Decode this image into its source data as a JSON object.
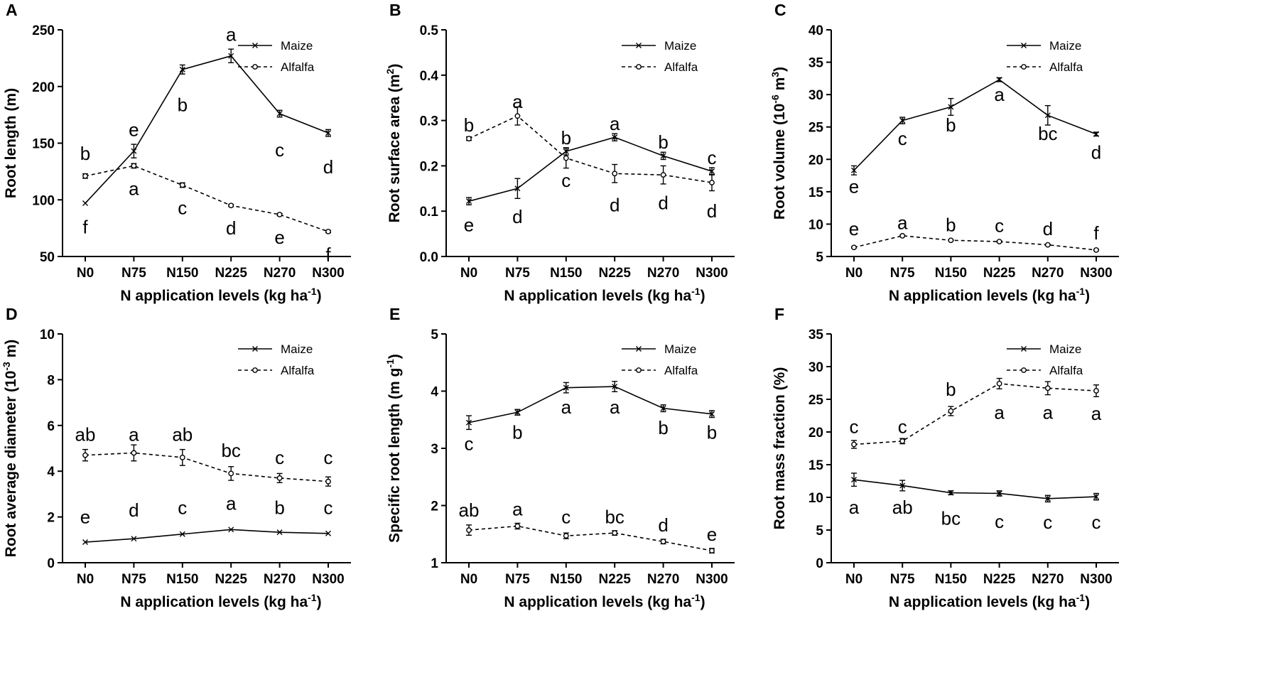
{
  "chart_data": [
    {
      "panel": "A",
      "type": "line",
      "xlabel": "N application levels (kg ha",
      "xlabel_sup": "-1",
      "xlabel_end": ")",
      "ylabel": "Root length (m)",
      "ylim": [
        50,
        250
      ],
      "yticks": [
        50,
        100,
        150,
        200,
        250
      ],
      "categories": [
        "N0",
        "N75",
        "N150",
        "N225",
        "N270",
        "N300"
      ],
      "series": [
        {
          "name": "Maize",
          "style": "solid",
          "marker": "x",
          "values": [
            97,
            143,
            215,
            227,
            176,
            159
          ],
          "errors": [
            0,
            6,
            4,
            6,
            3,
            3
          ],
          "labels": [
            "f",
            "e",
            "b",
            "a",
            "c",
            "d"
          ],
          "label_values": [
            76,
            162,
            184,
            246,
            144,
            129
          ]
        },
        {
          "name": "Alfalfa",
          "style": "dashed",
          "marker": "o",
          "values": [
            121,
            130,
            113,
            95,
            87,
            72
          ],
          "errors": [
            2,
            2,
            2,
            1,
            1,
            1
          ],
          "labels": [
            "b",
            "a",
            "c",
            "d",
            "e",
            "f"
          ],
          "label_values": [
            141,
            110,
            93,
            75,
            67,
            52
          ]
        }
      ]
    },
    {
      "panel": "B",
      "type": "line",
      "xlabel": "N application levels (kg ha",
      "xlabel_sup": "-1",
      "xlabel_end": ")",
      "ylabel": "Root surface area (m",
      "ylabel_sup": "2",
      "ylabel_end": ")",
      "ylim": [
        0.0,
        0.5
      ],
      "yticks": [
        0.0,
        0.1,
        0.2,
        0.3,
        0.4,
        0.5
      ],
      "categories": [
        "N0",
        "N75",
        "N150",
        "N225",
        "N270",
        "N300"
      ],
      "series": [
        {
          "name": "Maize",
          "style": "solid",
          "marker": "x",
          "values": [
            0.122,
            0.15,
            0.232,
            0.263,
            0.222,
            0.188
          ],
          "errors": [
            0.008,
            0.022,
            0.008,
            0.008,
            0.008,
            0.008
          ],
          "labels": [
            "e",
            "d",
            "b",
            "a",
            "b",
            "c"
          ],
          "label_values": [
            0.07,
            0.088,
            0.262,
            0.293,
            0.252,
            0.218
          ]
        },
        {
          "name": "Alfalfa",
          "style": "dashed",
          "marker": "o",
          "values": [
            0.26,
            0.31,
            0.217,
            0.183,
            0.18,
            0.163
          ],
          "errors": [
            0.004,
            0.02,
            0.022,
            0.02,
            0.02,
            0.018
          ],
          "labels": [
            "b",
            "a",
            "c",
            "d",
            "d",
            "d"
          ],
          "label_values": [
            0.29,
            0.342,
            0.168,
            0.114,
            0.118,
            0.1
          ]
        }
      ]
    },
    {
      "panel": "C",
      "type": "line",
      "xlabel": "N application levels (kg ha",
      "xlabel_sup": "-1",
      "xlabel_end": ")",
      "ylabel": "Root volume (10",
      "ylabel_sup": "-6",
      "ylabel_end": " m",
      "ylabel_sup2": "3",
      "ylabel_end2": ")",
      "ylim": [
        5,
        40
      ],
      "yticks": [
        5,
        10,
        15,
        20,
        25,
        30,
        35,
        40
      ],
      "categories": [
        "N0",
        "N75",
        "N150",
        "N225",
        "N270",
        "N300"
      ],
      "series": [
        {
          "name": "Maize",
          "style": "solid",
          "marker": "x",
          "values": [
            18.3,
            26.0,
            28.1,
            32.3,
            26.8,
            23.9
          ],
          "errors": [
            0.7,
            0.5,
            1.3,
            0.3,
            1.5,
            0.3
          ],
          "labels": [
            "e",
            "c",
            "b",
            "a",
            "bc",
            "d"
          ],
          "label_values": [
            15.8,
            23.2,
            25.3,
            30.0,
            24.0,
            21.1
          ]
        },
        {
          "name": "Alfalfa",
          "style": "dashed",
          "marker": "o",
          "values": [
            6.4,
            8.2,
            7.5,
            7.3,
            6.8,
            6.0
          ],
          "errors": [
            0.1,
            0.1,
            0.1,
            0.1,
            0.1,
            0.1
          ],
          "labels": [
            "e",
            "a",
            "b",
            "c",
            "d",
            "f"
          ],
          "label_values": [
            9.3,
            10.2,
            9.9,
            9.8,
            9.3,
            8.6
          ]
        }
      ]
    },
    {
      "panel": "D",
      "type": "line",
      "xlabel": "N application levels (kg ha",
      "xlabel_sup": "-1",
      "xlabel_end": ")",
      "ylabel": "Root average diameter (10",
      "ylabel_sup": "-3",
      "ylabel_end": " m)",
      "ylim": [
        0,
        10
      ],
      "yticks": [
        0,
        2,
        4,
        6,
        8,
        10
      ],
      "categories": [
        "N0",
        "N75",
        "N150",
        "N225",
        "N270",
        "N300"
      ],
      "series": [
        {
          "name": "Maize",
          "style": "solid",
          "marker": "x",
          "values": [
            0.9,
            1.05,
            1.25,
            1.45,
            1.33,
            1.28
          ],
          "errors": [
            0,
            0,
            0,
            0,
            0,
            0
          ],
          "labels": [
            "e",
            "d",
            "c",
            "a",
            "b",
            "c"
          ],
          "label_values": [
            2.0,
            2.3,
            2.4,
            2.6,
            2.4,
            2.4
          ]
        },
        {
          "name": "Alfalfa",
          "style": "dashed",
          "marker": "o",
          "values": [
            4.7,
            4.8,
            4.6,
            3.9,
            3.7,
            3.55
          ],
          "errors": [
            0.25,
            0.35,
            0.35,
            0.3,
            0.2,
            0.2
          ],
          "labels": [
            "ab",
            "a",
            "ab",
            "bc",
            "c",
            "c"
          ],
          "label_values": [
            5.6,
            5.6,
            5.6,
            4.9,
            4.6,
            4.6
          ]
        }
      ]
    },
    {
      "panel": "E",
      "type": "line",
      "xlabel": "N application levels (kg ha",
      "xlabel_sup": "-1",
      "xlabel_end": ")",
      "ylabel": "Specific root length (m g",
      "ylabel_sup": "-1",
      "ylabel_end": ")",
      "ylim": [
        1,
        5
      ],
      "yticks": [
        1,
        2,
        3,
        4,
        5
      ],
      "categories": [
        "N0",
        "N75",
        "N150",
        "N225",
        "N270",
        "N300"
      ],
      "series": [
        {
          "name": "Maize",
          "style": "solid",
          "marker": "x",
          "values": [
            3.45,
            3.63,
            4.06,
            4.08,
            3.7,
            3.6
          ],
          "errors": [
            0.12,
            0.05,
            0.09,
            0.09,
            0.06,
            0.06
          ],
          "labels": [
            "c",
            "b",
            "a",
            "a",
            "b",
            "b"
          ],
          "label_values": [
            3.08,
            3.28,
            3.72,
            3.72,
            3.36,
            3.28
          ]
        },
        {
          "name": "Alfalfa",
          "style": "dashed",
          "marker": "o",
          "values": [
            1.57,
            1.64,
            1.47,
            1.52,
            1.37,
            1.21
          ],
          "errors": [
            0.09,
            0.05,
            0.05,
            0.04,
            0.04,
            0.04
          ],
          "labels": [
            "ab",
            "a",
            "c",
            "bc",
            "d",
            "e"
          ],
          "label_values": [
            1.92,
            1.94,
            1.8,
            1.8,
            1.66,
            1.5
          ]
        }
      ]
    },
    {
      "panel": "F",
      "type": "line",
      "xlabel": "N application levels (kg ha",
      "xlabel_sup": "-1",
      "xlabel_end": ")",
      "ylabel": "Root mass fraction (%)",
      "ylim": [
        0,
        35
      ],
      "yticks": [
        0,
        5,
        10,
        15,
        20,
        25,
        30,
        35
      ],
      "categories": [
        "N0",
        "N75",
        "N150",
        "N225",
        "N270",
        "N300"
      ],
      "series": [
        {
          "name": "Maize",
          "style": "solid",
          "marker": "x",
          "values": [
            12.7,
            11.8,
            10.7,
            10.6,
            9.8,
            10.1
          ],
          "errors": [
            1.0,
            0.8,
            0.3,
            0.4,
            0.5,
            0.5
          ],
          "labels": [
            "a",
            "ab",
            "bc",
            "c",
            "c",
            "c"
          ],
          "label_values": [
            8.5,
            8.5,
            6.8,
            6.3,
            6.2,
            6.2
          ]
        },
        {
          "name": "Alfalfa",
          "style": "dashed",
          "marker": "o",
          "values": [
            18.1,
            18.6,
            23.2,
            27.4,
            26.7,
            26.3
          ],
          "errors": [
            0.6,
            0.4,
            0.7,
            0.8,
            1.0,
            0.9
          ],
          "labels": [
            "c",
            "c",
            "b",
            "a",
            "a",
            "a"
          ],
          "label_values": [
            20.8,
            20.8,
            26.5,
            23.0,
            23.0,
            22.8
          ]
        }
      ]
    }
  ]
}
